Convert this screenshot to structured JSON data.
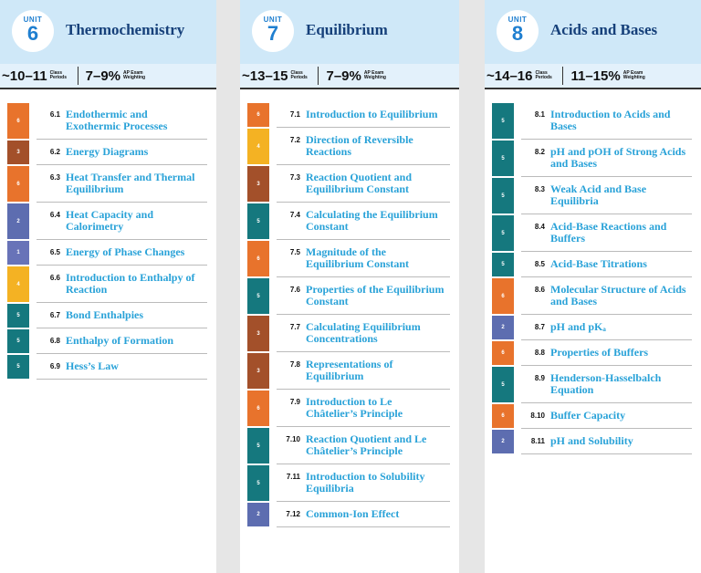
{
  "badge_colors": {
    "1": "#6873b8",
    "2": "#5d6db0",
    "3": "#a3502a",
    "4": "#f4b223",
    "5": "#15787e",
    "6": "#e8732c"
  },
  "units": [
    {
      "unit_label": "UNIT",
      "number": "6",
      "title": "Thermochemistry",
      "periods": "~10–11",
      "periods_label": "Class Periods",
      "weighting": "7–9%",
      "weighting_label": "AP Exam Weighting",
      "topics": [
        {
          "badge": "6",
          "number": "6.1",
          "title": "Endothermic and Exothermic Processes"
        },
        {
          "badge": "3",
          "number": "6.2",
          "title": "Energy Diagrams"
        },
        {
          "badge": "6",
          "number": "6.3",
          "title": "Heat Transfer and Thermal Equilibrium"
        },
        {
          "badge": "2",
          "number": "6.4",
          "title": "Heat Capacity and Calorimetry"
        },
        {
          "badge": "1",
          "number": "6.5",
          "title": "Energy of Phase Changes"
        },
        {
          "badge": "4",
          "number": "6.6",
          "title": "Introduction to Enthalpy of Reaction"
        },
        {
          "badge": "5",
          "number": "6.7",
          "title": "Bond Enthalpies"
        },
        {
          "badge": "5",
          "number": "6.8",
          "title": "Enthalpy of Formation"
        },
        {
          "badge": "5",
          "number": "6.9",
          "title": "Hess’s Law"
        }
      ]
    },
    {
      "unit_label": "UNIT",
      "number": "7",
      "title": "Equilibrium",
      "periods": "~13–15",
      "periods_label": "Class Periods",
      "weighting": "7–9%",
      "weighting_label": "AP Exam Weighting",
      "topics": [
        {
          "badge": "6",
          "number": "7.1",
          "title": "Introduction to Equilibrium"
        },
        {
          "badge": "4",
          "number": "7.2",
          "title": "Direction of Reversible Reactions"
        },
        {
          "badge": "3",
          "number": "7.3",
          "title": "Reaction Quotient and Equilibrium Constant"
        },
        {
          "badge": "5",
          "number": "7.4",
          "title": "Calculating the Equilibrium Constant"
        },
        {
          "badge": "6",
          "number": "7.5",
          "title": "Magnitude of the Equilibrium Constant"
        },
        {
          "badge": "5",
          "number": "7.6",
          "title": "Properties of the Equilibrium Constant"
        },
        {
          "badge": "3",
          "number": "7.7",
          "title": "Calculating Equilibrium Concentrations"
        },
        {
          "badge": "3",
          "number": "7.8",
          "title": "Representations of Equilibrium"
        },
        {
          "badge": "6",
          "number": "7.9",
          "title": "Introduction to Le Châtelier’s Principle"
        },
        {
          "badge": "5",
          "number": "7.10",
          "title": "Reaction Quotient and Le Châtelier’s Principle"
        },
        {
          "badge": "5",
          "number": "7.11",
          "title": "Introduction to Solubility Equilibria"
        },
        {
          "badge": "2",
          "number": "7.12",
          "title": "Common-Ion Effect"
        }
      ]
    },
    {
      "unit_label": "UNIT",
      "number": "8",
      "title": "Acids and Bases",
      "periods": "~14–16",
      "periods_label": "Class Periods",
      "weighting": "11–15%",
      "weighting_label": "AP Exam Weighting",
      "topics": [
        {
          "badge": "5",
          "number": "8.1",
          "title": "Introduction to Acids and Bases"
        },
        {
          "badge": "5",
          "number": "8.2",
          "title": "pH and pOH of Strong Acids and Bases"
        },
        {
          "badge": "5",
          "number": "8.3",
          "title": "Weak Acid and Base Equilibria"
        },
        {
          "badge": "5",
          "number": "8.4",
          "title": "Acid-Base Reactions and Buffers"
        },
        {
          "badge": "5",
          "number": "8.5",
          "title": "Acid-Base Titrations"
        },
        {
          "badge": "6",
          "number": "8.6",
          "title": "Molecular Structure of Acids and Bases"
        },
        {
          "badge": "2",
          "number": "8.7",
          "title": "pH and pKₐ"
        },
        {
          "badge": "6",
          "number": "8.8",
          "title": "Properties of Buffers"
        },
        {
          "badge": "5",
          "number": "8.9",
          "title": "Henderson-Hasselbalch Equation"
        },
        {
          "badge": "6",
          "number": "8.10",
          "title": "Buffer Capacity"
        },
        {
          "badge": "2",
          "number": "8.11",
          "title": "pH and Solubility"
        }
      ]
    }
  ]
}
